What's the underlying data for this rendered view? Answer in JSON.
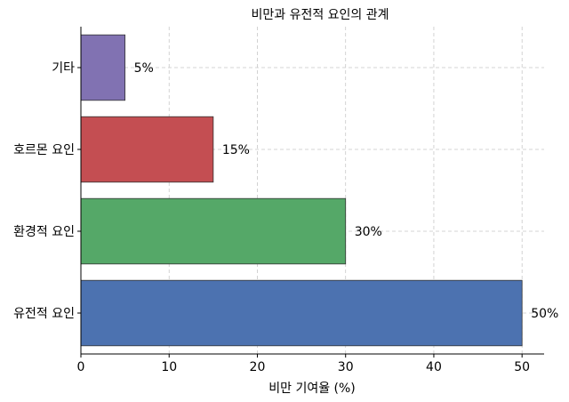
{
  "chart_data": {
    "type": "bar",
    "orientation": "horizontal",
    "title": "비만과 유전적 요인의 관계",
    "xlabel": "비만 기여율 (%)",
    "ylabel": "",
    "categories": [
      "유전적 요인",
      "환경적 요인",
      "호르몬 요인",
      "기타"
    ],
    "values": [
      50,
      30,
      15,
      5
    ],
    "data_labels": [
      "50%",
      "30%",
      "15%",
      "5%"
    ],
    "colors": [
      "#4c72b0",
      "#55a868",
      "#c44e52",
      "#8172b2"
    ],
    "xlim": [
      0,
      52.5
    ],
    "xticks": [
      0,
      10,
      20,
      30,
      40,
      50
    ],
    "grid": true
  }
}
